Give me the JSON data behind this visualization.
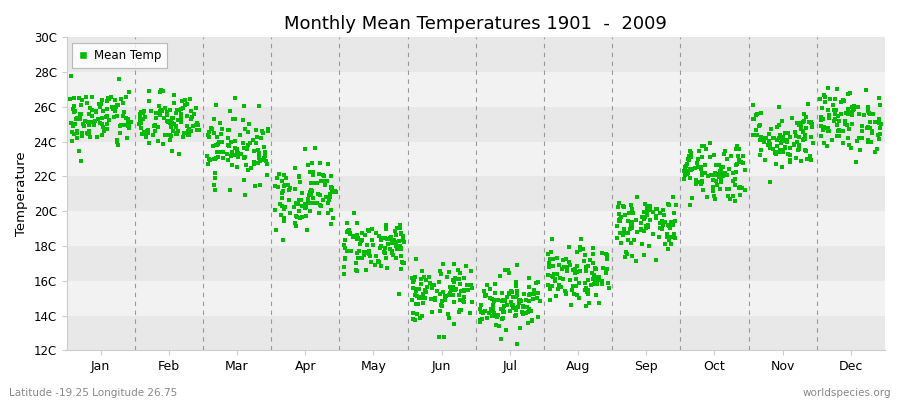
{
  "title": "Monthly Mean Temperatures 1901  -  2009",
  "ylabel": "Temperature",
  "xlabel_labels": [
    "Jan",
    "Feb",
    "Mar",
    "Apr",
    "May",
    "Jun",
    "Jul",
    "Aug",
    "Sep",
    "Oct",
    "Nov",
    "Dec"
  ],
  "ylim": [
    12,
    30
  ],
  "ytick_values": [
    12,
    14,
    16,
    18,
    20,
    22,
    24,
    26,
    28,
    30
  ],
  "ytick_labels": [
    "12C",
    "14C",
    "16C",
    "18C",
    "20C",
    "22C",
    "24C",
    "26C",
    "28C",
    "30C"
  ],
  "dot_color": "#00bb00",
  "bg_color": "#ffffff",
  "band_colors": [
    "#ebebeb",
    "#f5f5f5",
    "#ebebeb",
    "#f5f5f5",
    "#ebebeb",
    "#f5f5f5",
    "#ebebeb",
    "#f5f5f5",
    "#ebebeb"
  ],
  "legend_label": "Mean Temp",
  "footer_left": "Latitude -19.25 Longitude 26.75",
  "footer_right": "worldspecies.org",
  "monthly_mean_temps": [
    25.3,
    25.1,
    23.7,
    21.0,
    18.0,
    15.2,
    14.8,
    16.2,
    19.2,
    22.3,
    24.2,
    25.2
  ],
  "monthly_std": [
    0.9,
    0.85,
    1.0,
    1.0,
    0.8,
    0.85,
    0.85,
    0.85,
    0.9,
    0.9,
    0.9,
    0.9
  ],
  "n_years": 109
}
